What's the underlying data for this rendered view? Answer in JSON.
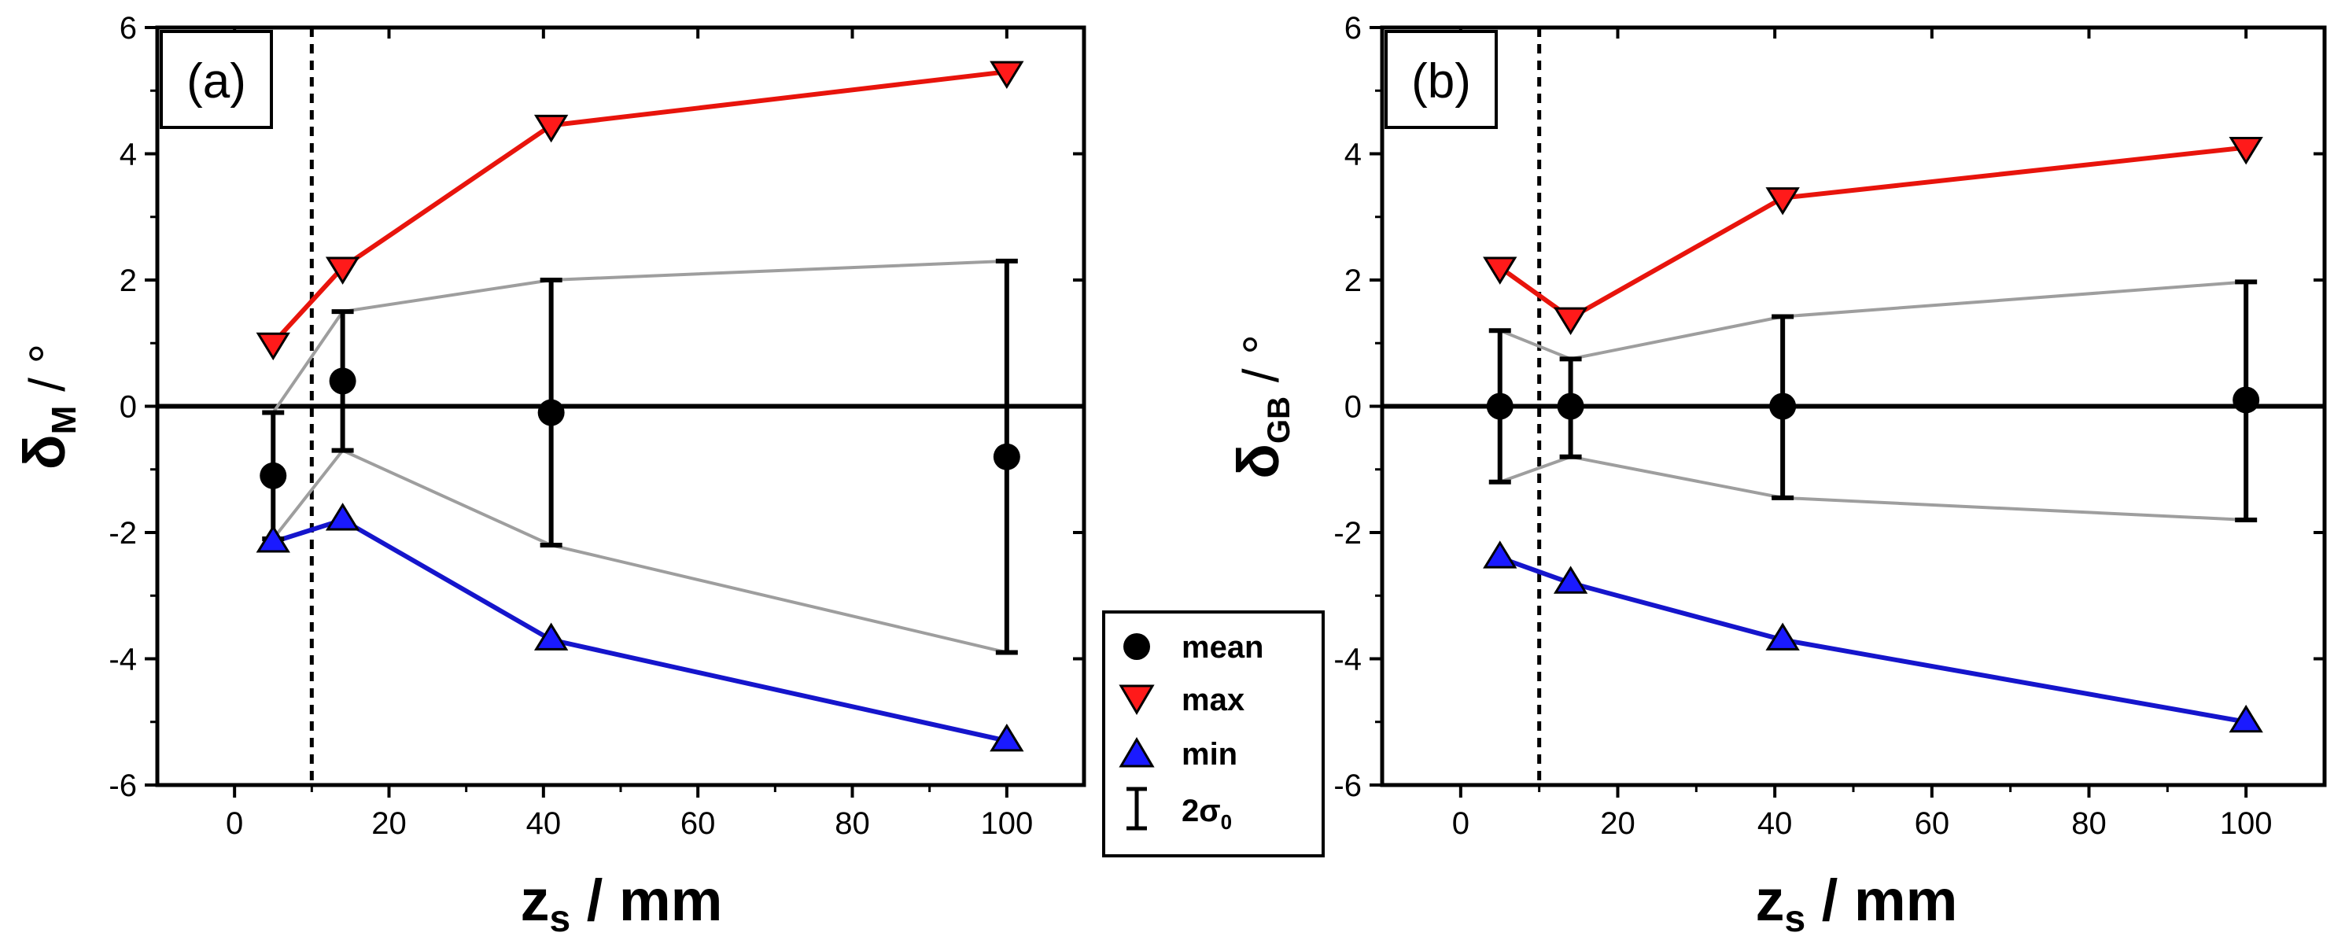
{
  "chart_data": [
    {
      "type": "scatter",
      "panel_label": "(a)",
      "xlabel": {
        "main": "z",
        "sub": "s",
        "unit": " / mm"
      },
      "ylabel": {
        "main": "δ",
        "sub": "M",
        "unit": " / °"
      },
      "xlim": [
        -10,
        110
      ],
      "ylim": [
        -6,
        6
      ],
      "xticks": [
        0,
        20,
        40,
        60,
        80,
        100
      ],
      "yticks": [
        -6,
        -4,
        -2,
        0,
        2,
        4,
        6
      ],
      "xtick_labels": [
        "0",
        "20",
        "40",
        "60",
        "80",
        "100"
      ],
      "ytick_labels": [
        "-6",
        "-4",
        "-2",
        "0",
        "2",
        "4",
        "6"
      ],
      "x": [
        5,
        14,
        41,
        100
      ],
      "series": [
        {
          "name": "mean",
          "values": [
            -1.1,
            0.4,
            -0.1,
            -0.8
          ]
        },
        {
          "name": "max",
          "values": [
            1.0,
            2.2,
            4.45,
            5.3
          ]
        },
        {
          "name": "min",
          "values": [
            -2.15,
            -1.8,
            -3.7,
            -5.3
          ]
        },
        {
          "name": "2σ0",
          "lower": [
            -2.1,
            -0.7,
            -2.2,
            -3.9
          ],
          "upper": [
            -0.1,
            1.5,
            2.0,
            2.3
          ]
        }
      ],
      "vertical_line_x": 10,
      "zero_line_y": 0
    },
    {
      "type": "scatter",
      "panel_label": "(b)",
      "xlabel": {
        "main": "z",
        "sub": "s",
        "unit": " / mm"
      },
      "ylabel": {
        "main": "δ",
        "sub": "GB",
        "unit": " / °"
      },
      "xlim": [
        -10,
        110
      ],
      "ylim": [
        -6,
        6
      ],
      "xticks": [
        0,
        20,
        40,
        60,
        80,
        100
      ],
      "yticks": [
        -6,
        -4,
        -2,
        0,
        2,
        4,
        6
      ],
      "xtick_labels": [
        "0",
        "20",
        "40",
        "60",
        "80",
        "100"
      ],
      "ytick_labels": [
        "-6",
        "-4",
        "-2",
        "0",
        "2",
        "4",
        "6"
      ],
      "x": [
        5,
        14,
        41,
        100
      ],
      "series": [
        {
          "name": "mean",
          "values": [
            0.0,
            0.0,
            0.0,
            0.1
          ]
        },
        {
          "name": "max",
          "values": [
            2.2,
            1.4,
            3.3,
            4.1
          ]
        },
        {
          "name": "min",
          "values": [
            -2.4,
            -2.8,
            -3.7,
            -5.0
          ]
        },
        {
          "name": "2σ0",
          "lower": [
            -1.2,
            -0.8,
            -1.45,
            -1.8
          ],
          "upper": [
            1.2,
            0.75,
            1.42,
            1.97
          ]
        }
      ],
      "vertical_line_x": 10,
      "zero_line_y": 0
    }
  ],
  "legend": {
    "items": [
      {
        "marker": "circle",
        "label": "mean"
      },
      {
        "marker": "triangle-down",
        "label": "max"
      },
      {
        "marker": "triangle-up",
        "label": "min"
      },
      {
        "marker": "errorbar",
        "label": "2σ",
        "sub": "0"
      }
    ]
  },
  "colors": {
    "max": "#ff1a1a",
    "min": "#1a1aff",
    "max_line": "#e8140c",
    "min_line": "#1515cc",
    "band": "#9e9e9e",
    "axis": "#000000"
  }
}
